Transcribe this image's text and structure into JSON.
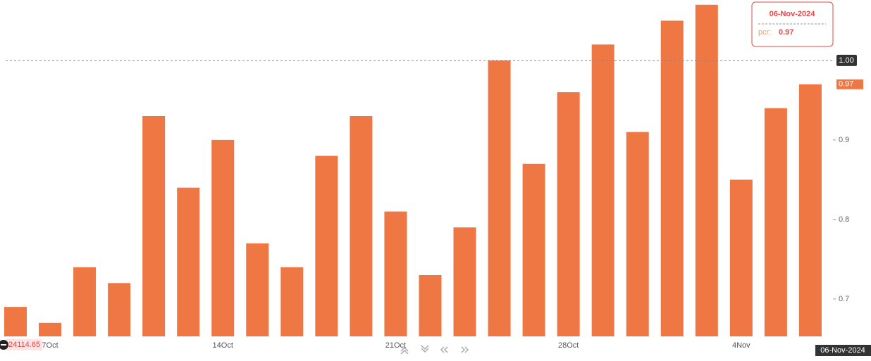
{
  "chart_data": {
    "type": "bar",
    "categories": [
      null,
      "7Oct",
      null,
      null,
      null,
      null,
      "14Oct",
      null,
      null,
      null,
      null,
      "21Oct",
      null,
      null,
      null,
      null,
      "28Oct",
      null,
      null,
      null,
      null,
      "4Nov",
      null,
      null
    ],
    "values": [
      0.69,
      0.67,
      0.74,
      0.72,
      0.93,
      0.84,
      0.9,
      0.77,
      0.74,
      0.88,
      0.93,
      0.81,
      0.73,
      0.79,
      1.0,
      0.87,
      0.96,
      1.02,
      0.91,
      1.05,
      1.07,
      0.85,
      0.94,
      0.97
    ],
    "color": "#ee7744",
    "ylim": [
      0.653,
      1.076
    ],
    "yticks": [
      0.7,
      0.8,
      0.9
    ],
    "crosshair": {
      "value": 1,
      "label": "1.00"
    },
    "price_label": 24114.65,
    "tooltip": {
      "date": "06-Nov-2024",
      "name": "pcr:"
    }
  }
}
